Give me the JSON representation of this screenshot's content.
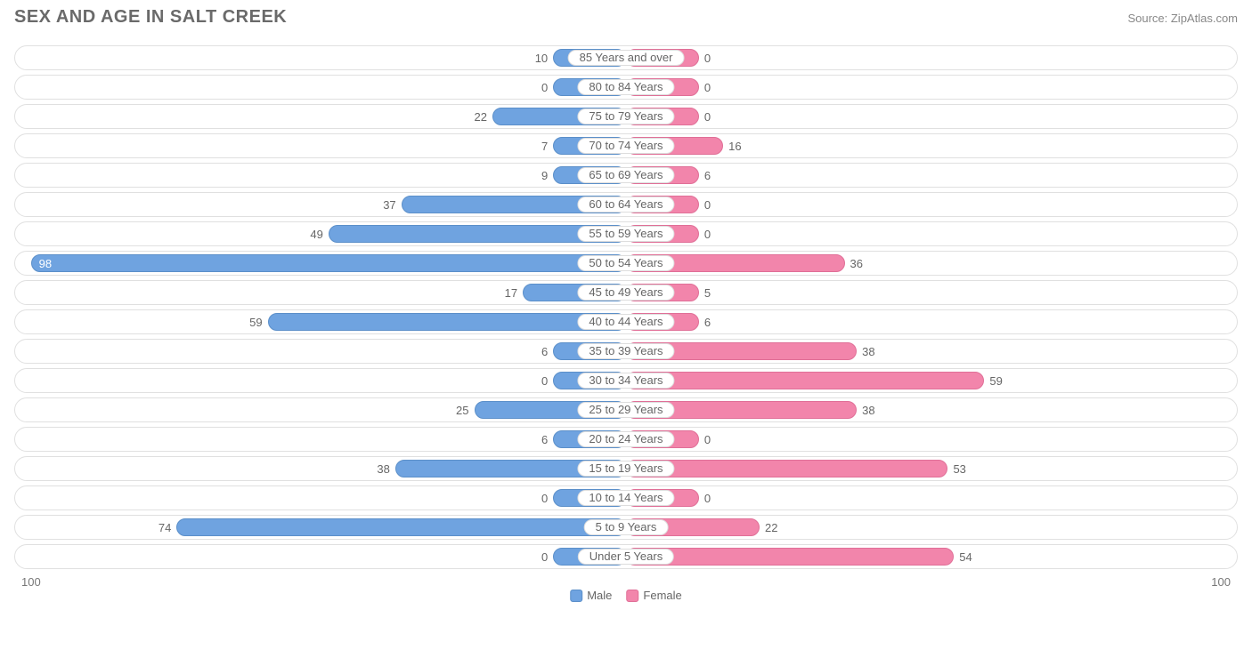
{
  "title": "SEX AND AGE IN SALT CREEK",
  "source": "Source: ZipAtlas.com",
  "chart": {
    "type": "population-pyramid",
    "axis_max": 100,
    "axis_label_left": "100",
    "axis_label_right": "100",
    "min_bar_pct": 12,
    "inside_threshold": 85,
    "colors": {
      "male_fill": "#6fa3e0",
      "male_border": "#5b8fc9",
      "female_fill": "#f285ab",
      "female_border": "#e06f97",
      "row_border": "#e0e0e0",
      "text": "#666666",
      "background": "#ffffff"
    },
    "legend": {
      "male": "Male",
      "female": "Female"
    },
    "rows": [
      {
        "label": "85 Years and over",
        "male": 10,
        "female": 0
      },
      {
        "label": "80 to 84 Years",
        "male": 0,
        "female": 0
      },
      {
        "label": "75 to 79 Years",
        "male": 22,
        "female": 0
      },
      {
        "label": "70 to 74 Years",
        "male": 7,
        "female": 16
      },
      {
        "label": "65 to 69 Years",
        "male": 9,
        "female": 6
      },
      {
        "label": "60 to 64 Years",
        "male": 37,
        "female": 0
      },
      {
        "label": "55 to 59 Years",
        "male": 49,
        "female": 0
      },
      {
        "label": "50 to 54 Years",
        "male": 98,
        "female": 36
      },
      {
        "label": "45 to 49 Years",
        "male": 17,
        "female": 5
      },
      {
        "label": "40 to 44 Years",
        "male": 59,
        "female": 6
      },
      {
        "label": "35 to 39 Years",
        "male": 6,
        "female": 38
      },
      {
        "label": "30 to 34 Years",
        "male": 0,
        "female": 59
      },
      {
        "label": "25 to 29 Years",
        "male": 25,
        "female": 38
      },
      {
        "label": "20 to 24 Years",
        "male": 6,
        "female": 0
      },
      {
        "label": "15 to 19 Years",
        "male": 38,
        "female": 53
      },
      {
        "label": "10 to 14 Years",
        "male": 0,
        "female": 0
      },
      {
        "label": "5 to 9 Years",
        "male": 74,
        "female": 22
      },
      {
        "label": "Under 5 Years",
        "male": 0,
        "female": 54
      }
    ]
  }
}
